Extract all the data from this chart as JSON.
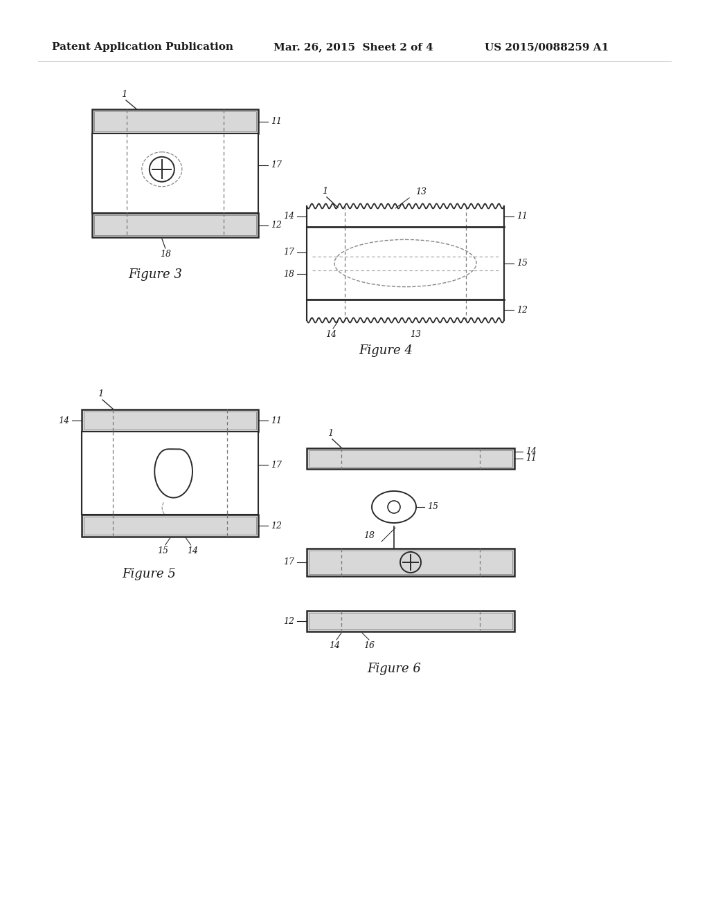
{
  "background_color": "#ffffff",
  "header_text": "Patent Application Publication",
  "header_date": "Mar. 26, 2015  Sheet 2 of 4",
  "header_patent": "US 2015/0088259 A1",
  "line_color": "#2a2a2a",
  "text_color": "#1a1a1a",
  "fig3_label": "Figure 3",
  "fig4_label": "Figure 4",
  "fig5_label": "Figure 5",
  "fig6_label": "Figure 6",
  "plate_fill": "#d8d8d8",
  "middle_fill": "none"
}
